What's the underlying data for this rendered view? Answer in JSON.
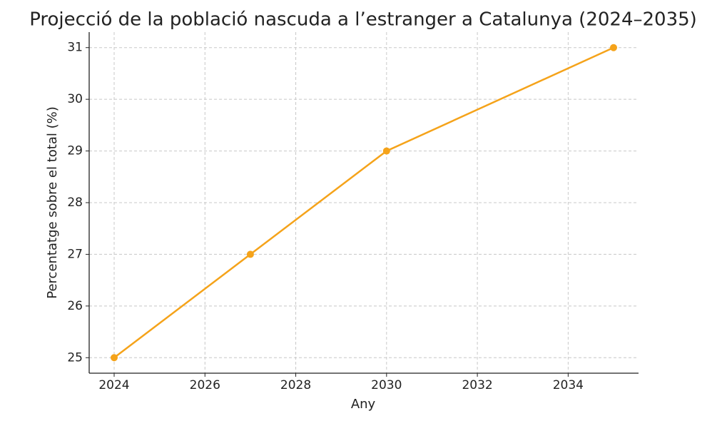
{
  "chart_data": {
    "type": "line",
    "title": "Projecció de la població nascuda a l’estranger a Catalunya (2024–2035)",
    "x_label": "Any",
    "y_label": "Percentatge sobre el total (%)",
    "x": [
      2024,
      2027,
      2030,
      2035
    ],
    "values": [
      25,
      27,
      29,
      31
    ],
    "color": "#f5a31a",
    "xlim": [
      2023.45,
      2035.55
    ],
    "ylim": [
      24.7,
      31.3
    ],
    "xticks": [
      2024,
      2026,
      2028,
      2030,
      2032,
      2034
    ],
    "yticks": [
      25,
      26,
      27,
      28,
      29,
      30,
      31
    ],
    "grid": true
  }
}
